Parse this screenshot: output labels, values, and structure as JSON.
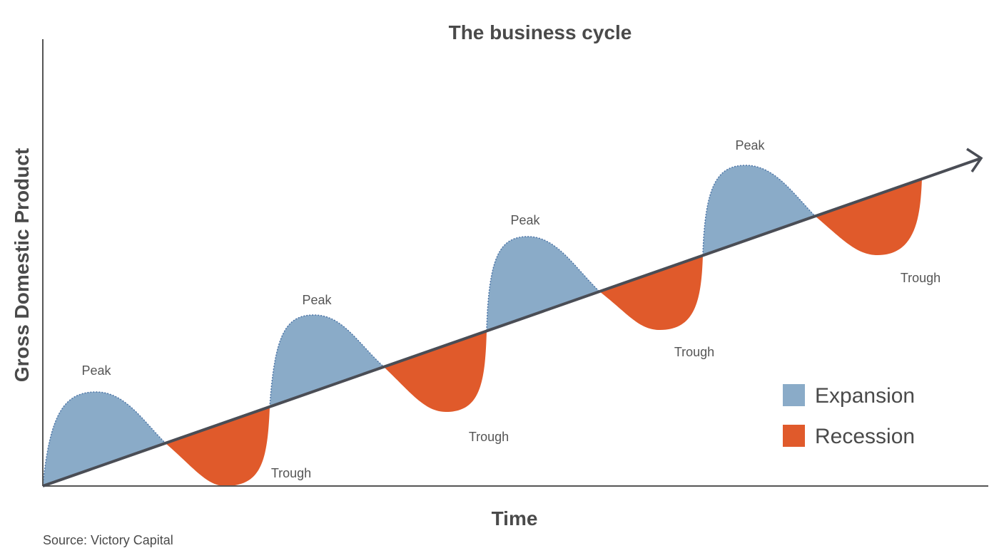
{
  "title": "The business cycle",
  "y_axis_label": "Gross Domestic Product",
  "x_axis_label": "Time",
  "source": "Source: Victory Capital",
  "peaks": [
    "Peak",
    "Peak",
    "Peak",
    "Peak"
  ],
  "troughs": [
    "Trough",
    "Trough",
    "Trough",
    "Trough"
  ],
  "legend": [
    "Expansion",
    "Recession"
  ]
}
